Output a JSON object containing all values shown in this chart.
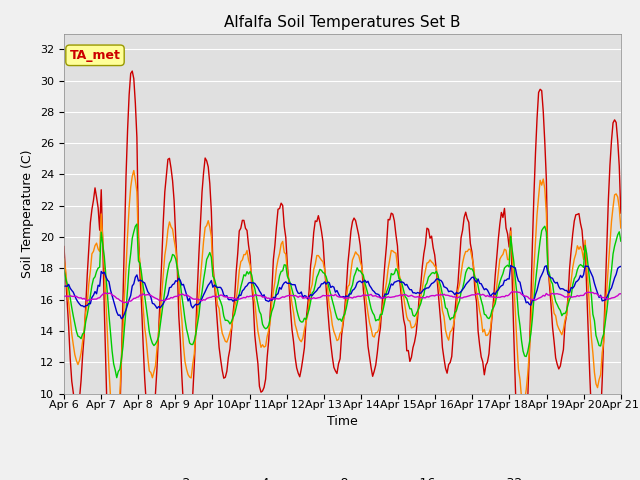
{
  "title": "Alfalfa Soil Temperatures Set B",
  "xlabel": "Time",
  "ylabel": "Soil Temperature (C)",
  "ylim": [
    10,
    33
  ],
  "yticks": [
    10,
    12,
    14,
    16,
    18,
    20,
    22,
    24,
    26,
    28,
    30,
    32
  ],
  "colors": {
    "-2cm": "#CC0000",
    "-4cm": "#FF8800",
    "-8cm": "#00CC00",
    "-16cm": "#0000CC",
    "-32cm": "#CC00CC"
  },
  "annotation_label": "TA_met",
  "annotation_color": "#CC0000",
  "annotation_bg": "#FFFF99",
  "fig_bg": "#F0F0F0",
  "plot_bg": "#E0E0E0",
  "title_fontsize": 11,
  "axis_fontsize": 9,
  "tick_fontsize": 8,
  "legend_fontsize": 9,
  "n_days": 15,
  "start_day": 6
}
